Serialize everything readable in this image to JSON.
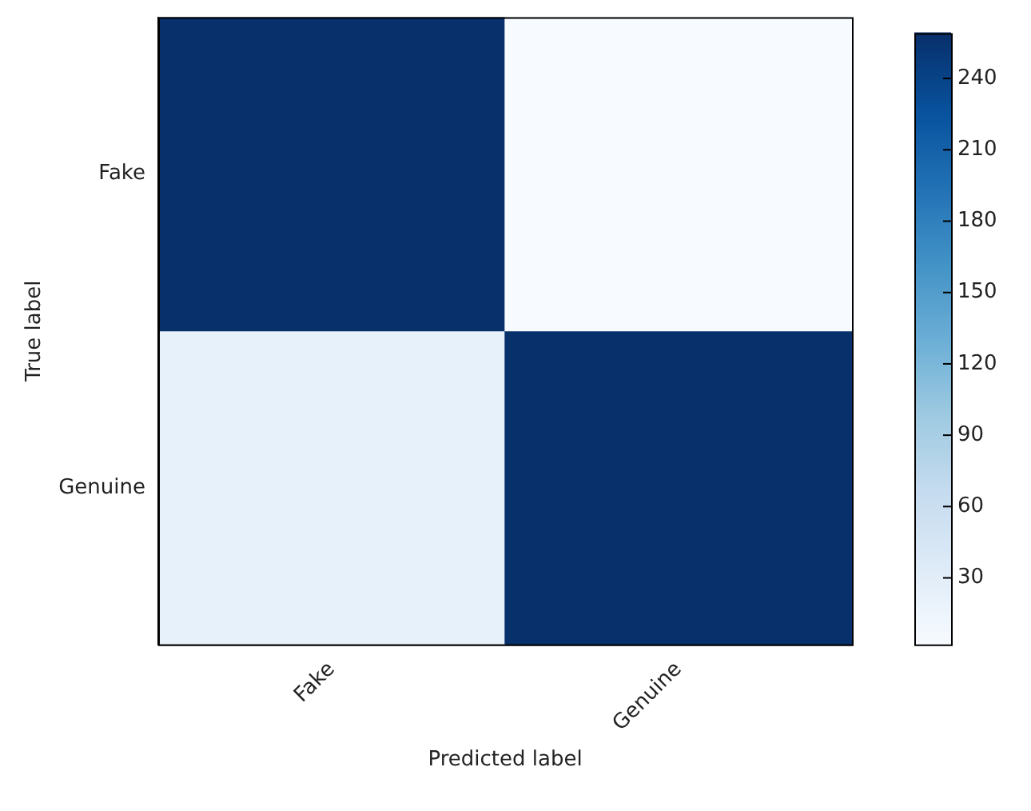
{
  "chart_data": {
    "type": "heatmap",
    "xlabel": "Predicted label",
    "ylabel": "True label",
    "categories": [
      "Fake",
      "Genuine"
    ],
    "y_categories": [
      "Fake",
      "Genuine"
    ],
    "cells": [
      [
        259,
        2
      ],
      [
        22,
        259
      ]
    ],
    "clim": [
      2,
      259
    ],
    "cticks": [
      30,
      60,
      90,
      120,
      150,
      180,
      210,
      240
    ]
  }
}
